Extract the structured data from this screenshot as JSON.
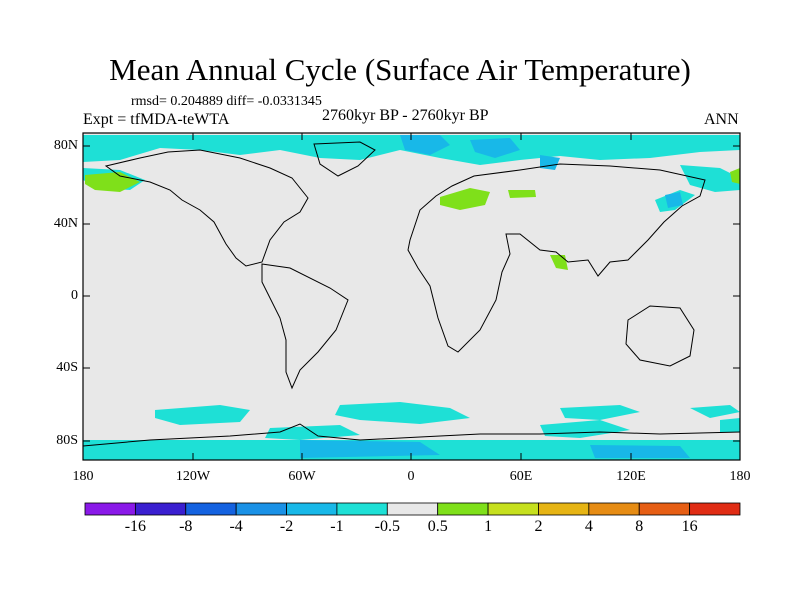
{
  "title": "Mean Annual Cycle (Surface Air Temperature)",
  "stats_text": "rmsd= 0.204889  diff= -0.0331345",
  "experiment": "Expt = tfMDA-teWTA",
  "period": "2760kyr BP - 2760kyr BP",
  "season": "ANN",
  "map": {
    "lat_labels": [
      "80N",
      "40N",
      "0",
      "40S",
      "80S"
    ],
    "lon_labels": [
      "180",
      "120W",
      "60W",
      "0",
      "60E",
      "120E",
      "180"
    ],
    "background_color": "#e8e8e8",
    "coast_color": "#000000"
  },
  "colorbar": {
    "labels": [
      "-16",
      "-8",
      "-4",
      "-2",
      "-1",
      "-0.5",
      "0.5",
      "1",
      "2",
      "4",
      "8",
      "16"
    ],
    "colors": [
      "#8a19e8",
      "#3a1fd0",
      "#1462e0",
      "#1a91e6",
      "#18b8e8",
      "#1ee0d6",
      "#e8e8e8",
      "#7fe01a",
      "#c6e01e",
      "#e6b414",
      "#e68c14",
      "#e65e14",
      "#e02c14"
    ]
  }
}
